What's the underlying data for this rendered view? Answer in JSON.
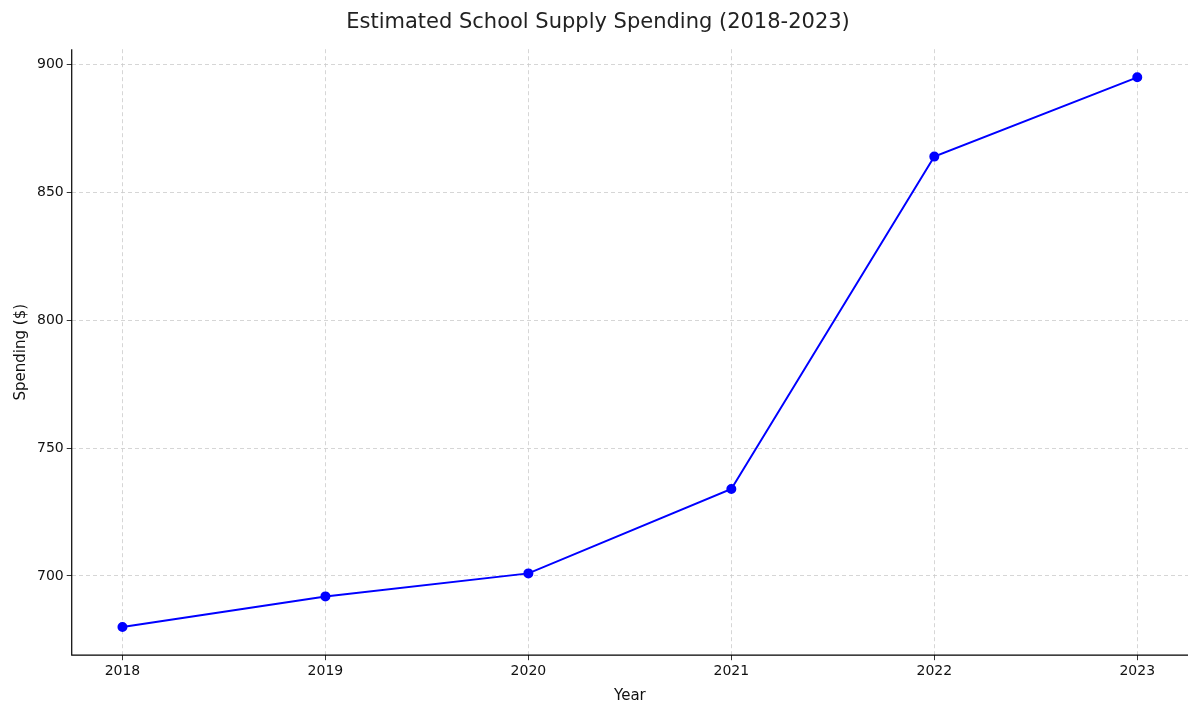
{
  "chart_data": {
    "type": "line",
    "title": "Estimated School Supply Spending (2018-2023)",
    "x_label": "Year",
    "y_label": "Spending ($)",
    "x": [
      2018,
      2019,
      2020,
      2021,
      2022,
      2023
    ],
    "values": [
      680,
      692,
      701,
      734,
      864,
      895
    ],
    "color": "#0000ff",
    "marker": "circle",
    "line_style": "solid",
    "xlim": [
      2017.75,
      2023.25
    ],
    "xticks": [
      2018,
      2019,
      2020,
      2021,
      2022,
      2023
    ],
    "ylim": [
      669,
      906
    ],
    "yticks": [
      700,
      750,
      800,
      850,
      900
    ],
    "grid": true
  }
}
